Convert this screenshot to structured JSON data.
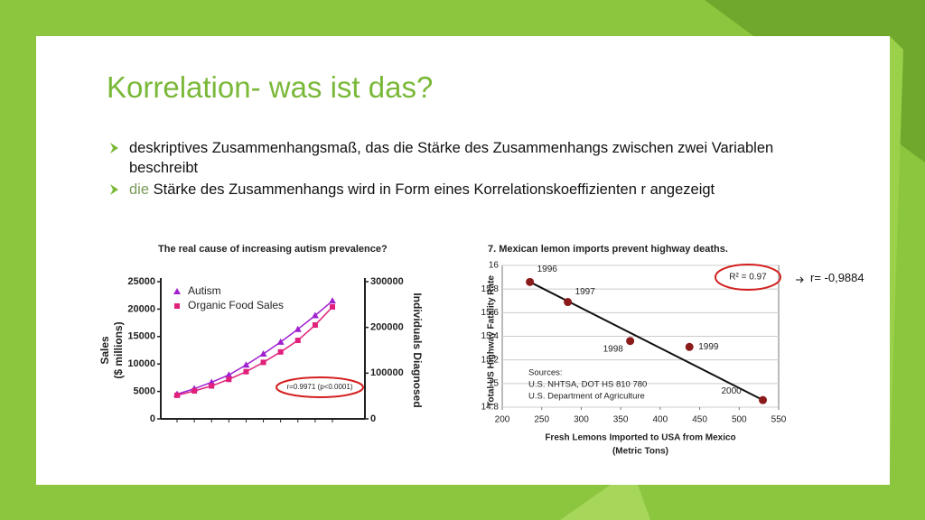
{
  "slide": {
    "title": "Korrelation- was ist das?",
    "bullets": [
      {
        "text": "deskriptives Zusammenhangsmaß, das die Stärke des Zusammenhangs zwischen zwei Variablen beschreibt"
      },
      {
        "lead": "die",
        "text": "Stärke des Zusammenhangs wird in Form eines Korrelationskoeffizienten r angezeigt"
      }
    ],
    "note": "r= -0,9884"
  },
  "chart_data": [
    {
      "type": "line",
      "title": "The real cause of increasing autism prevalence?",
      "ylabel": [
        "Sales",
        "($ millions)"
      ],
      "y2label": "Individuals Diagnosed",
      "annotation": "r=0.9971 (p<0.0001)",
      "categories": [
        null,
        null,
        null,
        null,
        null,
        null,
        null,
        null,
        null,
        null
      ],
      "series": [
        {
          "name": "Autism",
          "color": "#a020d0",
          "axis": "y2",
          "marker": "triangle",
          "values": [
            54000,
            66000,
            80000,
            96000,
            118000,
            142000,
            168000,
            196000,
            226000,
            258000
          ]
        },
        {
          "name": "Organic Food Sales",
          "color": "#e0207a",
          "marker": "square",
          "values": [
            4300,
            5100,
            6000,
            7200,
            8600,
            10300,
            12200,
            14300,
            17100,
            20400
          ]
        }
      ],
      "ylim": [
        0,
        25000
      ],
      "yticks": [
        0,
        5000,
        10000,
        15000,
        20000,
        25000
      ],
      "y2lim": [
        0,
        300000
      ],
      "y2ticks": [
        0,
        100000,
        200000,
        300000
      ],
      "legend": "upper left"
    },
    {
      "type": "scatter",
      "title": "7. Mexican lemon imports prevent highway deaths.",
      "xlabel": [
        "Fresh Lemons Imported to USA from Mexico",
        "(Metric Tons)"
      ],
      "ylabel": "Total US Highway Fatality Rate",
      "annotation": "R² = 0.97",
      "sources": [
        "Sources:",
        "U.S. NHTSA, DOT HS 810 780",
        "U.S. Department of Agriculture"
      ],
      "color": "#8b1a1a",
      "x": [
        235,
        283,
        362,
        437,
        530
      ],
      "values": [
        15.86,
        15.69,
        15.36,
        15.31,
        14.86
      ],
      "labels": [
        "1996",
        "1997",
        "1998",
        "1999",
        "2000"
      ],
      "xlim": [
        200,
        550
      ],
      "xticks": [
        200,
        250,
        300,
        350,
        400,
        450,
        500,
        550
      ],
      "ylim": [
        14.8,
        16
      ],
      "yticks": [
        14.8,
        15,
        15.2,
        15.4,
        15.6,
        15.8,
        16
      ],
      "grid": true,
      "trendline": true
    }
  ]
}
